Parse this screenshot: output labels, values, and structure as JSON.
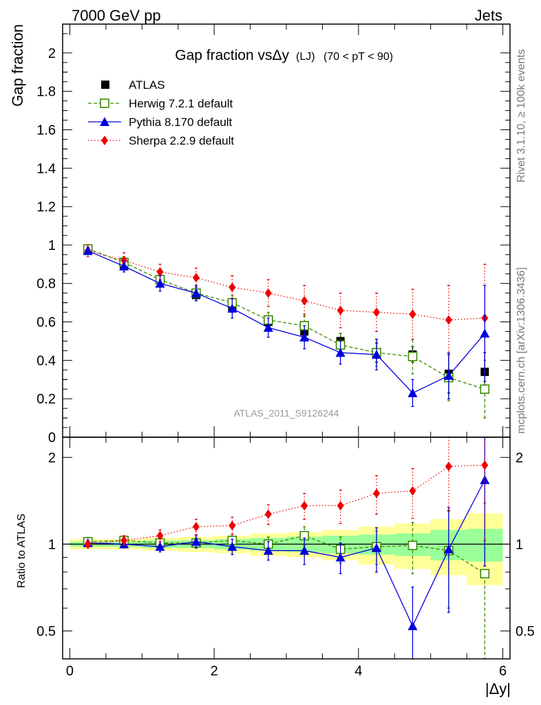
{
  "header": {
    "left": "7000 GeV pp",
    "right": "Jets"
  },
  "side_labels": {
    "rivet": "Rivet 3.1.10, ≥ 100k events",
    "mcplots": "mcplots.cern.ch [arXiv:1306.3436]"
  },
  "colors": {
    "atlas": "#000000",
    "herwig": "#3a8a00",
    "pythia": "#0000dd",
    "sherpa": "#ee0000",
    "band_outer": "#ffff99",
    "band_inner": "#99ff99"
  },
  "chart_data": [
    {
      "type": "scatter",
      "title_main": "Gap fraction vs",
      "title_var": "Δy",
      "title_sub": "(LJ)",
      "title_range": "(70 < pT <  90)",
      "ylabel": "Gap fraction",
      "xlabel": "|Δy|",
      "watermark": "ATLAS_2011_S9126244",
      "xlim": [
        -0.1,
        6.1
      ],
      "ylim": [
        0,
        2.15
      ],
      "yticks": [
        0,
        0.2,
        0.4,
        0.6,
        0.8,
        1,
        1.2,
        1.4,
        1.6,
        1.8,
        2
      ],
      "ytick_labels": [
        "0",
        "0.2",
        "0.4",
        "0.6",
        "0.8",
        "1",
        "1.2",
        "1.4",
        "1.6",
        "1.8",
        "2"
      ],
      "x": [
        0.25,
        0.75,
        1.25,
        1.75,
        2.25,
        2.75,
        3.25,
        3.75,
        4.25,
        4.75,
        5.25,
        5.75
      ],
      "series": [
        {
          "key": "atlas",
          "name": "ATLAS",
          "marker": "square",
          "values": [
            0.97,
            0.89,
            0.82,
            0.74,
            0.68,
            0.6,
            0.55,
            0.5,
            0.44,
            0.43,
            0.33,
            0.34
          ],
          "err": [
            0.02,
            0.02,
            0.02,
            0.03,
            0.03,
            0.03,
            0.03,
            0.04,
            0.05,
            0.04,
            0.1,
            0.1
          ]
        },
        {
          "key": "herwig",
          "name": "Herwig 7.2.1 default",
          "marker": "open-square",
          "line": "dashed",
          "values": [
            0.98,
            0.91,
            0.82,
            0.75,
            0.7,
            0.61,
            0.58,
            0.48,
            0.44,
            0.42,
            0.31,
            0.25
          ],
          "err": [
            0.02,
            0.03,
            0.03,
            0.04,
            0.04,
            0.04,
            0.06,
            0.06,
            0.07,
            0.09,
            0.12,
            0.15
          ]
        },
        {
          "key": "pythia",
          "name": "Pythia 8.170 default",
          "marker": "triangle",
          "line": "solid",
          "values": [
            0.97,
            0.89,
            0.8,
            0.75,
            0.67,
            0.57,
            0.52,
            0.44,
            0.43,
            0.23,
            0.32,
            0.54
          ],
          "err": [
            0.02,
            0.03,
            0.04,
            0.04,
            0.05,
            0.05,
            0.06,
            0.06,
            0.08,
            0.07,
            0.12,
            0.25
          ]
        },
        {
          "key": "sherpa",
          "name": "Sherpa 2.2.9 default",
          "marker": "diamond",
          "line": "dotted",
          "values": [
            0.97,
            0.92,
            0.86,
            0.83,
            0.78,
            0.75,
            0.71,
            0.66,
            0.65,
            0.64,
            0.61,
            0.62
          ],
          "err": [
            0.03,
            0.04,
            0.04,
            0.05,
            0.06,
            0.07,
            0.08,
            0.09,
            0.1,
            0.13,
            0.18,
            0.28
          ]
        }
      ]
    },
    {
      "type": "scatter",
      "ylabel": "Ratio to ATLAS",
      "scale": "log",
      "xlim": [
        -0.1,
        6.1
      ],
      "ylim": [
        0.4,
        2.35
      ],
      "xticks": [
        0,
        2,
        4,
        6
      ],
      "xtick_labels": [
        "0",
        "2",
        "4",
        "6"
      ],
      "yticks": [
        0.5,
        1,
        2
      ],
      "ytick_labels": [
        "0.5",
        "1",
        "2"
      ],
      "band_inner": [
        0.02,
        0.02,
        0.03,
        0.03,
        0.04,
        0.05,
        0.06,
        0.07,
        0.08,
        0.09,
        0.12,
        0.13
      ],
      "band_outer": [
        0.04,
        0.04,
        0.05,
        0.06,
        0.07,
        0.09,
        0.1,
        0.12,
        0.15,
        0.18,
        0.22,
        0.28
      ],
      "series": [
        {
          "key": "herwig",
          "values": [
            1.02,
            1.03,
            1.01,
            1.01,
            1.03,
            1.0,
            1.07,
            0.96,
            0.98,
            0.99,
            0.95,
            0.79
          ],
          "err": [
            0.02,
            0.03,
            0.03,
            0.04,
            0.05,
            0.06,
            0.08,
            0.1,
            0.13,
            0.2,
            0.35,
            0.6
          ]
        },
        {
          "key": "pythia",
          "values": [
            1.01,
            1.0,
            0.98,
            1.02,
            0.98,
            0.95,
            0.95,
            0.9,
            0.97,
            0.52,
            0.96,
            1.67
          ],
          "err": [
            0.02,
            0.03,
            0.04,
            0.05,
            0.06,
            0.07,
            0.1,
            0.11,
            0.17,
            0.19,
            0.38,
            0.83
          ]
        },
        {
          "key": "sherpa",
          "values": [
            1.0,
            1.03,
            1.07,
            1.15,
            1.16,
            1.27,
            1.36,
            1.36,
            1.5,
            1.53,
            1.86,
            1.88
          ],
          "err": [
            0.03,
            0.04,
            0.05,
            0.07,
            0.08,
            0.1,
            0.14,
            0.18,
            0.23,
            0.3,
            0.55,
            0.85
          ]
        }
      ]
    }
  ]
}
